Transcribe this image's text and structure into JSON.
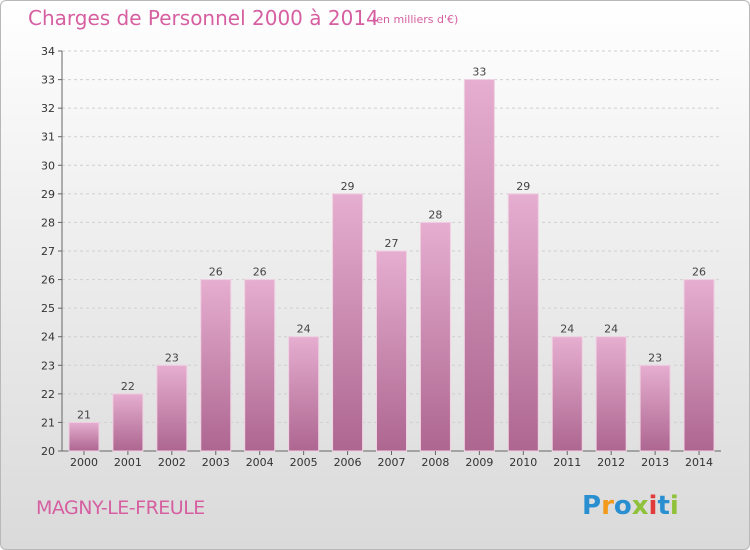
{
  "header": {
    "title": "Charges de Personnel 2000 à 2014",
    "subtitle": "(en milliers d'€)"
  },
  "footer": {
    "city": "MAGNY-LE-FREULE",
    "logo": "Proxiti"
  },
  "colors": {
    "accent": "#d65fa1",
    "bar_top": "#e4a9cb",
    "bar_bottom": "#b06690"
  },
  "chart_data": {
    "type": "bar",
    "title": "Charges de Personnel 2000 à 2014",
    "subtitle": "(en milliers d'€)",
    "categories": [
      "2000",
      "2001",
      "2002",
      "2003",
      "2004",
      "2005",
      "2006",
      "2007",
      "2008",
      "2009",
      "2010",
      "2011",
      "2012",
      "2013",
      "2014"
    ],
    "values": [
      21,
      22,
      23,
      26,
      26,
      24,
      29,
      27,
      28,
      33,
      29,
      24,
      24,
      23,
      26
    ],
    "ylim": [
      20,
      34
    ],
    "yticks": [
      20,
      21,
      22,
      23,
      24,
      25,
      26,
      27,
      28,
      29,
      30,
      31,
      32,
      33,
      34
    ],
    "grid": true,
    "legend": "none"
  }
}
